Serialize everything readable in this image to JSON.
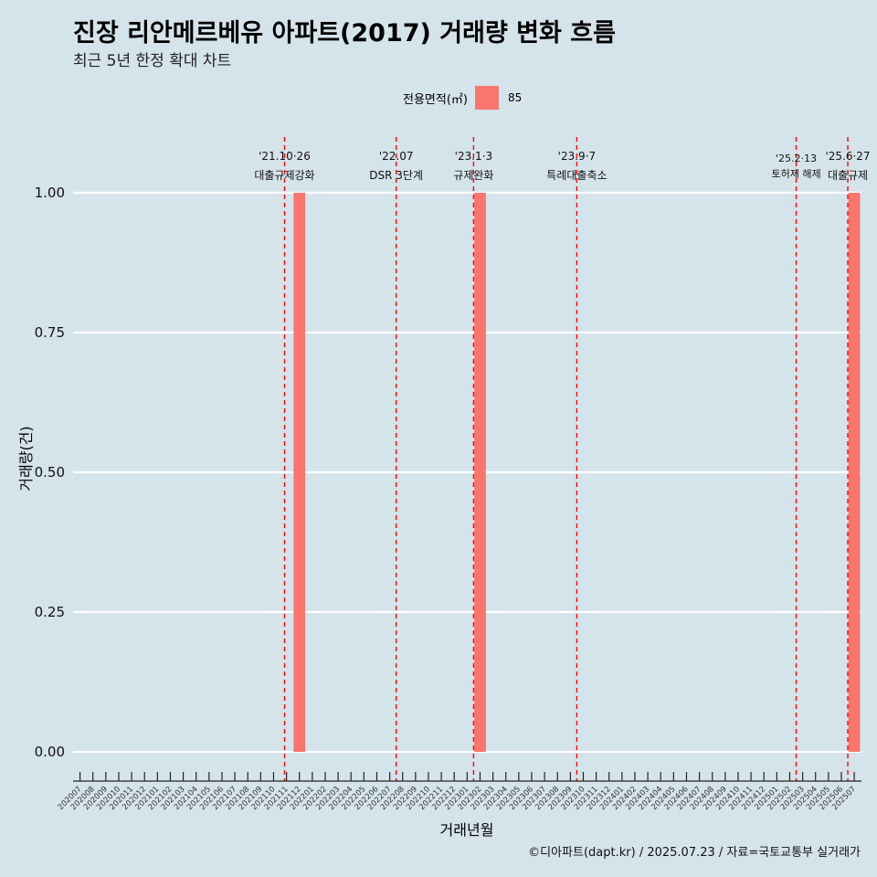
{
  "title": "진장 리안메르베유 아파트(2017) 거래량 변화 흐름",
  "subtitle": "최근 5년 한정 확대 차트",
  "legend": {
    "title": "전용면적(㎡)",
    "label": "85"
  },
  "caption": "©디아파트(dapt.kr) / 2025.07.23 / 자료=국토교통부 실거래가",
  "colors": {
    "background": "#d5e3ea",
    "bar": "#f8766d",
    "event_line": "#ff0000",
    "grid": "#ffffff"
  },
  "chart_data": {
    "type": "bar",
    "xlabel": "거래년월",
    "ylabel": "거래량(건)",
    "ylim": [
      0,
      1
    ],
    "y_ticks": [
      "0.00",
      "0.25",
      "0.50",
      "0.75",
      "1.00"
    ],
    "grid": true,
    "legend_position": "top",
    "categories": [
      "202007",
      "202008",
      "202009",
      "202010",
      "202011",
      "202012",
      "202101",
      "202102",
      "202103",
      "202104",
      "202105",
      "202106",
      "202107",
      "202108",
      "202109",
      "202110",
      "202111",
      "202112",
      "202201",
      "202202",
      "202203",
      "202204",
      "202205",
      "202206",
      "202207",
      "202208",
      "202209",
      "202210",
      "202211",
      "202212",
      "202301",
      "202302",
      "202303",
      "202304",
      "202305",
      "202306",
      "202307",
      "202308",
      "202309",
      "202310",
      "202311",
      "202312",
      "202401",
      "202402",
      "202403",
      "202404",
      "202405",
      "202406",
      "202407",
      "202408",
      "202409",
      "202410",
      "202411",
      "202412",
      "202501",
      "202502",
      "202503",
      "202504",
      "202505",
      "202506",
      "202507"
    ],
    "series": [
      {
        "name": "85",
        "values": [
          0,
          0,
          0,
          0,
          0,
          0,
          0,
          0,
          0,
          0,
          0,
          0,
          0,
          0,
          0,
          0,
          0,
          1,
          0,
          0,
          0,
          0,
          0,
          0,
          0,
          0,
          0,
          0,
          0,
          0,
          0,
          1,
          0,
          0,
          0,
          0,
          0,
          0,
          0,
          0,
          0,
          0,
          0,
          0,
          0,
          0,
          0,
          0,
          0,
          0,
          0,
          0,
          0,
          0,
          0,
          0,
          0,
          0,
          0,
          0,
          1
        ]
      }
    ],
    "events": [
      {
        "date": "2021-10-26",
        "at": 15.85,
        "line1": "'21.10·26",
        "line2": "대출규제강화"
      },
      {
        "date": "2022-07-01",
        "at": 24.5,
        "line1": "'22.07",
        "line2": "DSR 3단계"
      },
      {
        "date": "2023-01-03",
        "at": 30.5,
        "line1": "'23.1·3",
        "line2": "규제완화"
      },
      {
        "date": "2023-09-07",
        "at": 38.5,
        "line1": "'23.9·7",
        "line2": "특례대출축소"
      },
      {
        "date": "2025-02-13",
        "at": 55.5,
        "line1": "'25.2·13",
        "line2": "토허제 해제"
      },
      {
        "date": "2025-06-27",
        "at": 59.5,
        "line1": "'25.6·27",
        "line2": "대출규제"
      }
    ]
  }
}
